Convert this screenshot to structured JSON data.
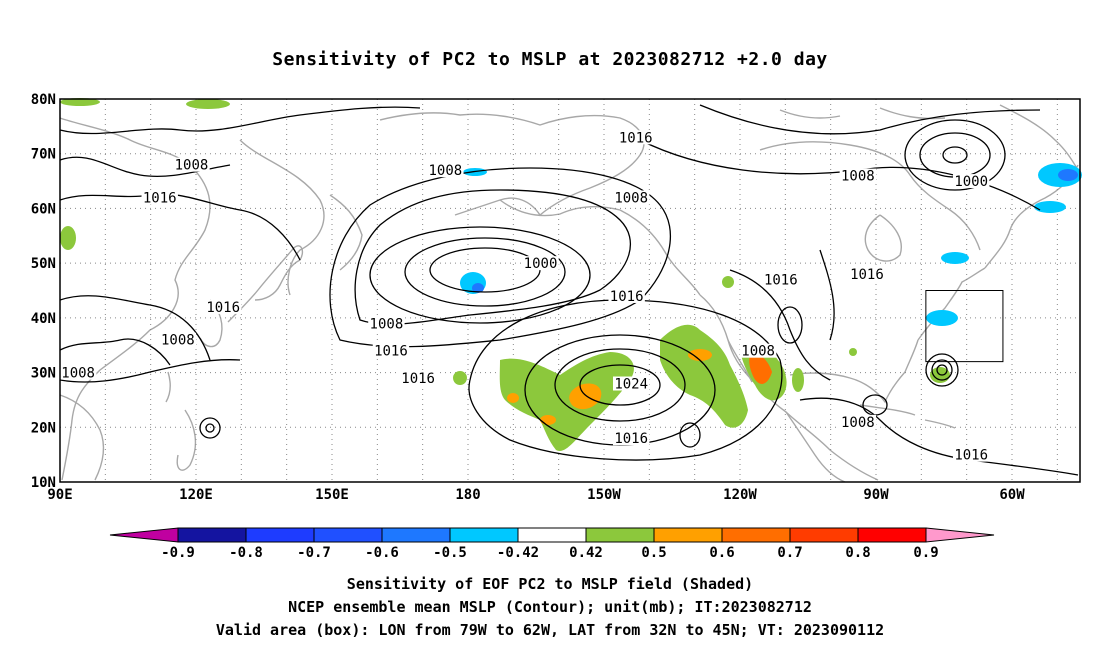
{
  "title": "Sensitivity of PC2 to MSLP at 2023082712 +2.0 day",
  "lat_labels": [
    "80N",
    "70N",
    "60N",
    "50N",
    "40N",
    "30N",
    "20N",
    "10N"
  ],
  "lon_labels": [
    "90E",
    "120E",
    "150E",
    "180",
    "150W",
    "120W",
    "90W",
    "60W"
  ],
  "contour_labels": [
    {
      "text": "1008",
      "lon": 119,
      "lat": 68
    },
    {
      "text": "1008",
      "lon": 175,
      "lat": 67
    },
    {
      "text": "1016",
      "lon": 217,
      "lat": 73
    },
    {
      "text": "1008",
      "lon": 216,
      "lat": 62
    },
    {
      "text": "1008",
      "lon": 266,
      "lat": 66
    },
    {
      "text": "1000",
      "lon": 291,
      "lat": 65
    },
    {
      "text": "1016",
      "lon": 112,
      "lat": 62
    },
    {
      "text": "1000",
      "lon": 196,
      "lat": 50
    },
    {
      "text": "1016",
      "lon": 126,
      "lat": 42
    },
    {
      "text": "1008",
      "lon": 116,
      "lat": 36
    },
    {
      "text": "1008",
      "lon": 94,
      "lat": 30
    },
    {
      "text": "1008",
      "lon": 162,
      "lat": 39
    },
    {
      "text": "1016",
      "lon": 163,
      "lat": 34
    },
    {
      "text": "1016",
      "lon": 215,
      "lat": 44
    },
    {
      "text": "1016",
      "lon": 249,
      "lat": 47
    },
    {
      "text": "1016",
      "lon": 268,
      "lat": 48
    },
    {
      "text": "1008",
      "lon": 244,
      "lat": 34
    },
    {
      "text": "1016",
      "lon": 169,
      "lat": 29
    },
    {
      "text": "1024",
      "lon": 216,
      "lat": 28
    },
    {
      "text": "1016",
      "lon": 216,
      "lat": 18
    },
    {
      "text": "1008",
      "lon": 266,
      "lat": 21
    },
    {
      "text": "1016",
      "lon": 291,
      "lat": 15
    }
  ],
  "box": {
    "lon_min": -79,
    "lon_max": -62,
    "lat_min": 32,
    "lat_max": 45
  },
  "colorbar": {
    "ticks": [
      "-0.9",
      "-0.8",
      "-0.7",
      "-0.6",
      "-0.5",
      "-0.42",
      "0.42",
      "0.5",
      "0.6",
      "0.7",
      "0.8",
      "0.9"
    ],
    "colors": [
      "#c000a0",
      "#1414a0",
      "#1e3cff",
      "#2050ff",
      "#1e78ff",
      "#00c8ff",
      "#ffffff",
      "#8cc83c",
      "#ffa000",
      "#ff6e00",
      "#ff3c00",
      "#ff0000",
      "#ff99cc"
    ]
  },
  "footer": {
    "line1": "Sensitivity of EOF PC2 to MSLP field (Shaded)",
    "line2": "NCEP ensemble mean MSLP (Contour); unit(mb); IT:2023082712",
    "line3": "Valid area (box): LON from 79W to 62W, LAT from 32N to 45N; VT: 2023090112"
  }
}
